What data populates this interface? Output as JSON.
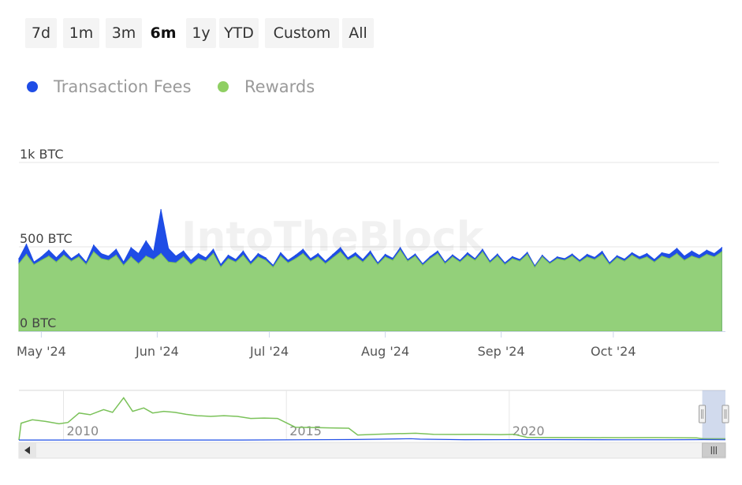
{
  "range_selector": {
    "buttons": [
      {
        "label": "7d",
        "active": false
      },
      {
        "label": "1m",
        "active": false
      },
      {
        "label": "3m",
        "active": false
      },
      {
        "label": "6m",
        "active": true
      },
      {
        "label": "1y",
        "active": false
      },
      {
        "label": "YTD",
        "active": false
      },
      {
        "label": "Custom",
        "active": false
      },
      {
        "label": "All",
        "active": false
      }
    ]
  },
  "legend": {
    "items": [
      {
        "label": "Transaction Fees",
        "color": "#1f4de6"
      },
      {
        "label": "Rewards",
        "color": "#8fcf63"
      }
    ]
  },
  "watermark": "IntoTheBlock",
  "colors": {
    "fees": "#1f4de6",
    "rewards_fill": "#93d07a",
    "rewards_line": "#7bc25a",
    "grid": "#e6e6e6",
    "navigator_line": "#7bc25a",
    "navigator_fees_line": "#1f4de6"
  },
  "chart_data": {
    "type": "area",
    "stacking": "normal",
    "x": [
      "2024-04-25",
      "2024-04-27",
      "2024-04-29",
      "2024-05-01",
      "2024-05-03",
      "2024-05-05",
      "2024-05-07",
      "2024-05-09",
      "2024-05-11",
      "2024-05-13",
      "2024-05-15",
      "2024-05-17",
      "2024-05-19",
      "2024-05-21",
      "2024-05-23",
      "2024-05-25",
      "2024-05-27",
      "2024-05-29",
      "2024-05-31",
      "2024-06-02",
      "2024-06-04",
      "2024-06-06",
      "2024-06-08",
      "2024-06-10",
      "2024-06-12",
      "2024-06-14",
      "2024-06-16",
      "2024-06-18",
      "2024-06-20",
      "2024-06-22",
      "2024-06-24",
      "2024-06-26",
      "2024-06-28",
      "2024-06-30",
      "2024-07-02",
      "2024-07-04",
      "2024-07-06",
      "2024-07-08",
      "2024-07-10",
      "2024-07-12",
      "2024-07-14",
      "2024-07-16",
      "2024-07-18",
      "2024-07-20",
      "2024-07-22",
      "2024-07-24",
      "2024-07-26",
      "2024-07-28",
      "2024-07-30",
      "2024-08-01",
      "2024-08-03",
      "2024-08-05",
      "2024-08-07",
      "2024-08-09",
      "2024-08-11",
      "2024-08-13",
      "2024-08-15",
      "2024-08-17",
      "2024-08-19",
      "2024-08-21",
      "2024-08-23",
      "2024-08-25",
      "2024-08-27",
      "2024-08-29",
      "2024-08-31",
      "2024-09-02",
      "2024-09-04",
      "2024-09-06",
      "2024-09-08",
      "2024-09-10",
      "2024-09-12",
      "2024-09-14",
      "2024-09-16",
      "2024-09-18",
      "2024-09-20",
      "2024-09-22",
      "2024-09-24",
      "2024-09-26",
      "2024-09-28",
      "2024-09-30",
      "2024-10-02",
      "2024-10-04",
      "2024-10-06",
      "2024-10-08",
      "2024-10-10",
      "2024-10-12",
      "2024-10-14",
      "2024-10-16",
      "2024-10-18",
      "2024-10-20",
      "2024-10-22",
      "2024-10-24",
      "2024-10-26",
      "2024-10-28",
      "2024-10-30"
    ],
    "series": [
      {
        "name": "Rewards",
        "values": [
          400,
          455,
          395,
          420,
          445,
          410,
          450,
          415,
          440,
          395,
          470,
          430,
          420,
          450,
          390,
          440,
          400,
          445,
          425,
          460,
          410,
          405,
          440,
          395,
          430,
          415,
          460,
          380,
          430,
          410,
          450,
          395,
          440,
          420,
          380,
          445,
          405,
          430,
          460,
          415,
          440,
          400,
          435,
          470,
          420,
          445,
          410,
          455,
          395,
          440,
          420,
          480,
          415,
          445,
          390,
          430,
          460,
          400,
          440,
          410,
          450,
          420,
          470,
          405,
          445,
          395,
          430,
          415,
          455,
          380,
          440,
          400,
          430,
          420,
          445,
          410,
          440,
          425,
          455,
          395,
          435,
          415,
          450,
          425,
          440,
          410,
          445,
          430,
          460,
          420,
          445,
          430,
          455,
          440,
          470
        ]
      },
      {
        "name": "Transaction Fees",
        "values": [
          30,
          60,
          15,
          20,
          35,
          25,
          30,
          15,
          20,
          15,
          40,
          30,
          25,
          35,
          20,
          55,
          60,
          90,
          45,
          260,
          80,
          40,
          35,
          25,
          30,
          20,
          25,
          15,
          20,
          15,
          25,
          15,
          20,
          15,
          10,
          20,
          15,
          20,
          25,
          15,
          20,
          15,
          20,
          25,
          15,
          20,
          15,
          20,
          10,
          15,
          12,
          15,
          10,
          12,
          10,
          12,
          15,
          10,
          12,
          10,
          15,
          10,
          15,
          10,
          12,
          10,
          12,
          10,
          12,
          8,
          10,
          8,
          10,
          10,
          12,
          10,
          15,
          12,
          18,
          10,
          12,
          12,
          15,
          15,
          20,
          15,
          20,
          25,
          30,
          25,
          30,
          20,
          25,
          20,
          25
        ]
      }
    ],
    "ylabel_ticks": [
      "0 BTC",
      "500 BTC",
      "1k BTC"
    ],
    "yticks": [
      0,
      500,
      1000
    ],
    "ylim": [
      0,
      1000
    ],
    "xlim": [
      "2024-04-25",
      "2024-10-31"
    ],
    "x_tick_labels": [
      "May '24",
      "Jun '24",
      "Jul '24",
      "Aug '24",
      "Sep '24",
      "Oct '24"
    ],
    "x_tick_dates": [
      "2024-05-01",
      "2024-06-01",
      "2024-07-01",
      "2024-08-01",
      "2024-09-01",
      "2024-10-01"
    ],
    "grid": true,
    "legend_position": "top-left",
    "navigator": {
      "x_range": [
        2009,
        2024.85
      ],
      "year_labels": [
        "2010",
        "2015",
        "2020"
      ],
      "year_values": [
        2010,
        2015,
        2020
      ],
      "rewards_series": [
        [
          2009.0,
          0
        ],
        [
          2009.05,
          500
        ],
        [
          2009.3,
          600
        ],
        [
          2009.6,
          550
        ],
        [
          2009.9,
          480
        ],
        [
          2010.1,
          520
        ],
        [
          2010.35,
          800
        ],
        [
          2010.6,
          750
        ],
        [
          2010.9,
          900
        ],
        [
          2011.1,
          820
        ],
        [
          2011.35,
          1250
        ],
        [
          2011.55,
          850
        ],
        [
          2011.8,
          950
        ],
        [
          2012.0,
          800
        ],
        [
          2012.25,
          850
        ],
        [
          2012.5,
          820
        ],
        [
          2012.75,
          760
        ],
        [
          2013.0,
          720
        ],
        [
          2013.3,
          700
        ],
        [
          2013.6,
          720
        ],
        [
          2013.9,
          700
        ],
        [
          2014.2,
          640
        ],
        [
          2014.5,
          650
        ],
        [
          2014.8,
          640
        ],
        [
          2015.2,
          380
        ],
        [
          2015.6,
          370
        ],
        [
          2016.0,
          360
        ],
        [
          2016.4,
          350
        ],
        [
          2016.6,
          150
        ],
        [
          2017.0,
          170
        ],
        [
          2017.5,
          190
        ],
        [
          2017.9,
          200
        ],
        [
          2018.3,
          170
        ],
        [
          2018.8,
          165
        ],
        [
          2019.3,
          170
        ],
        [
          2019.8,
          160
        ],
        [
          2020.1,
          170
        ],
        [
          2020.4,
          80
        ],
        [
          2021.0,
          75
        ],
        [
          2021.8,
          72
        ],
        [
          2022.5,
          70
        ],
        [
          2023.3,
          72
        ],
        [
          2024.2,
          65
        ],
        [
          2024.35,
          40
        ],
        [
          2024.85,
          38
        ]
      ],
      "fees_series": [
        [
          2009.0,
          0
        ],
        [
          2014.0,
          0
        ],
        [
          2016.5,
          15
        ],
        [
          2017.8,
          40
        ],
        [
          2018.0,
          25
        ],
        [
          2019.0,
          10
        ],
        [
          2021.0,
          12
        ],
        [
          2022.5,
          6
        ],
        [
          2023.5,
          8
        ],
        [
          2024.35,
          12
        ],
        [
          2024.85,
          8
        ]
      ],
      "y_max": 1400,
      "selected_range": [
        2024.33,
        2024.85
      ]
    }
  }
}
